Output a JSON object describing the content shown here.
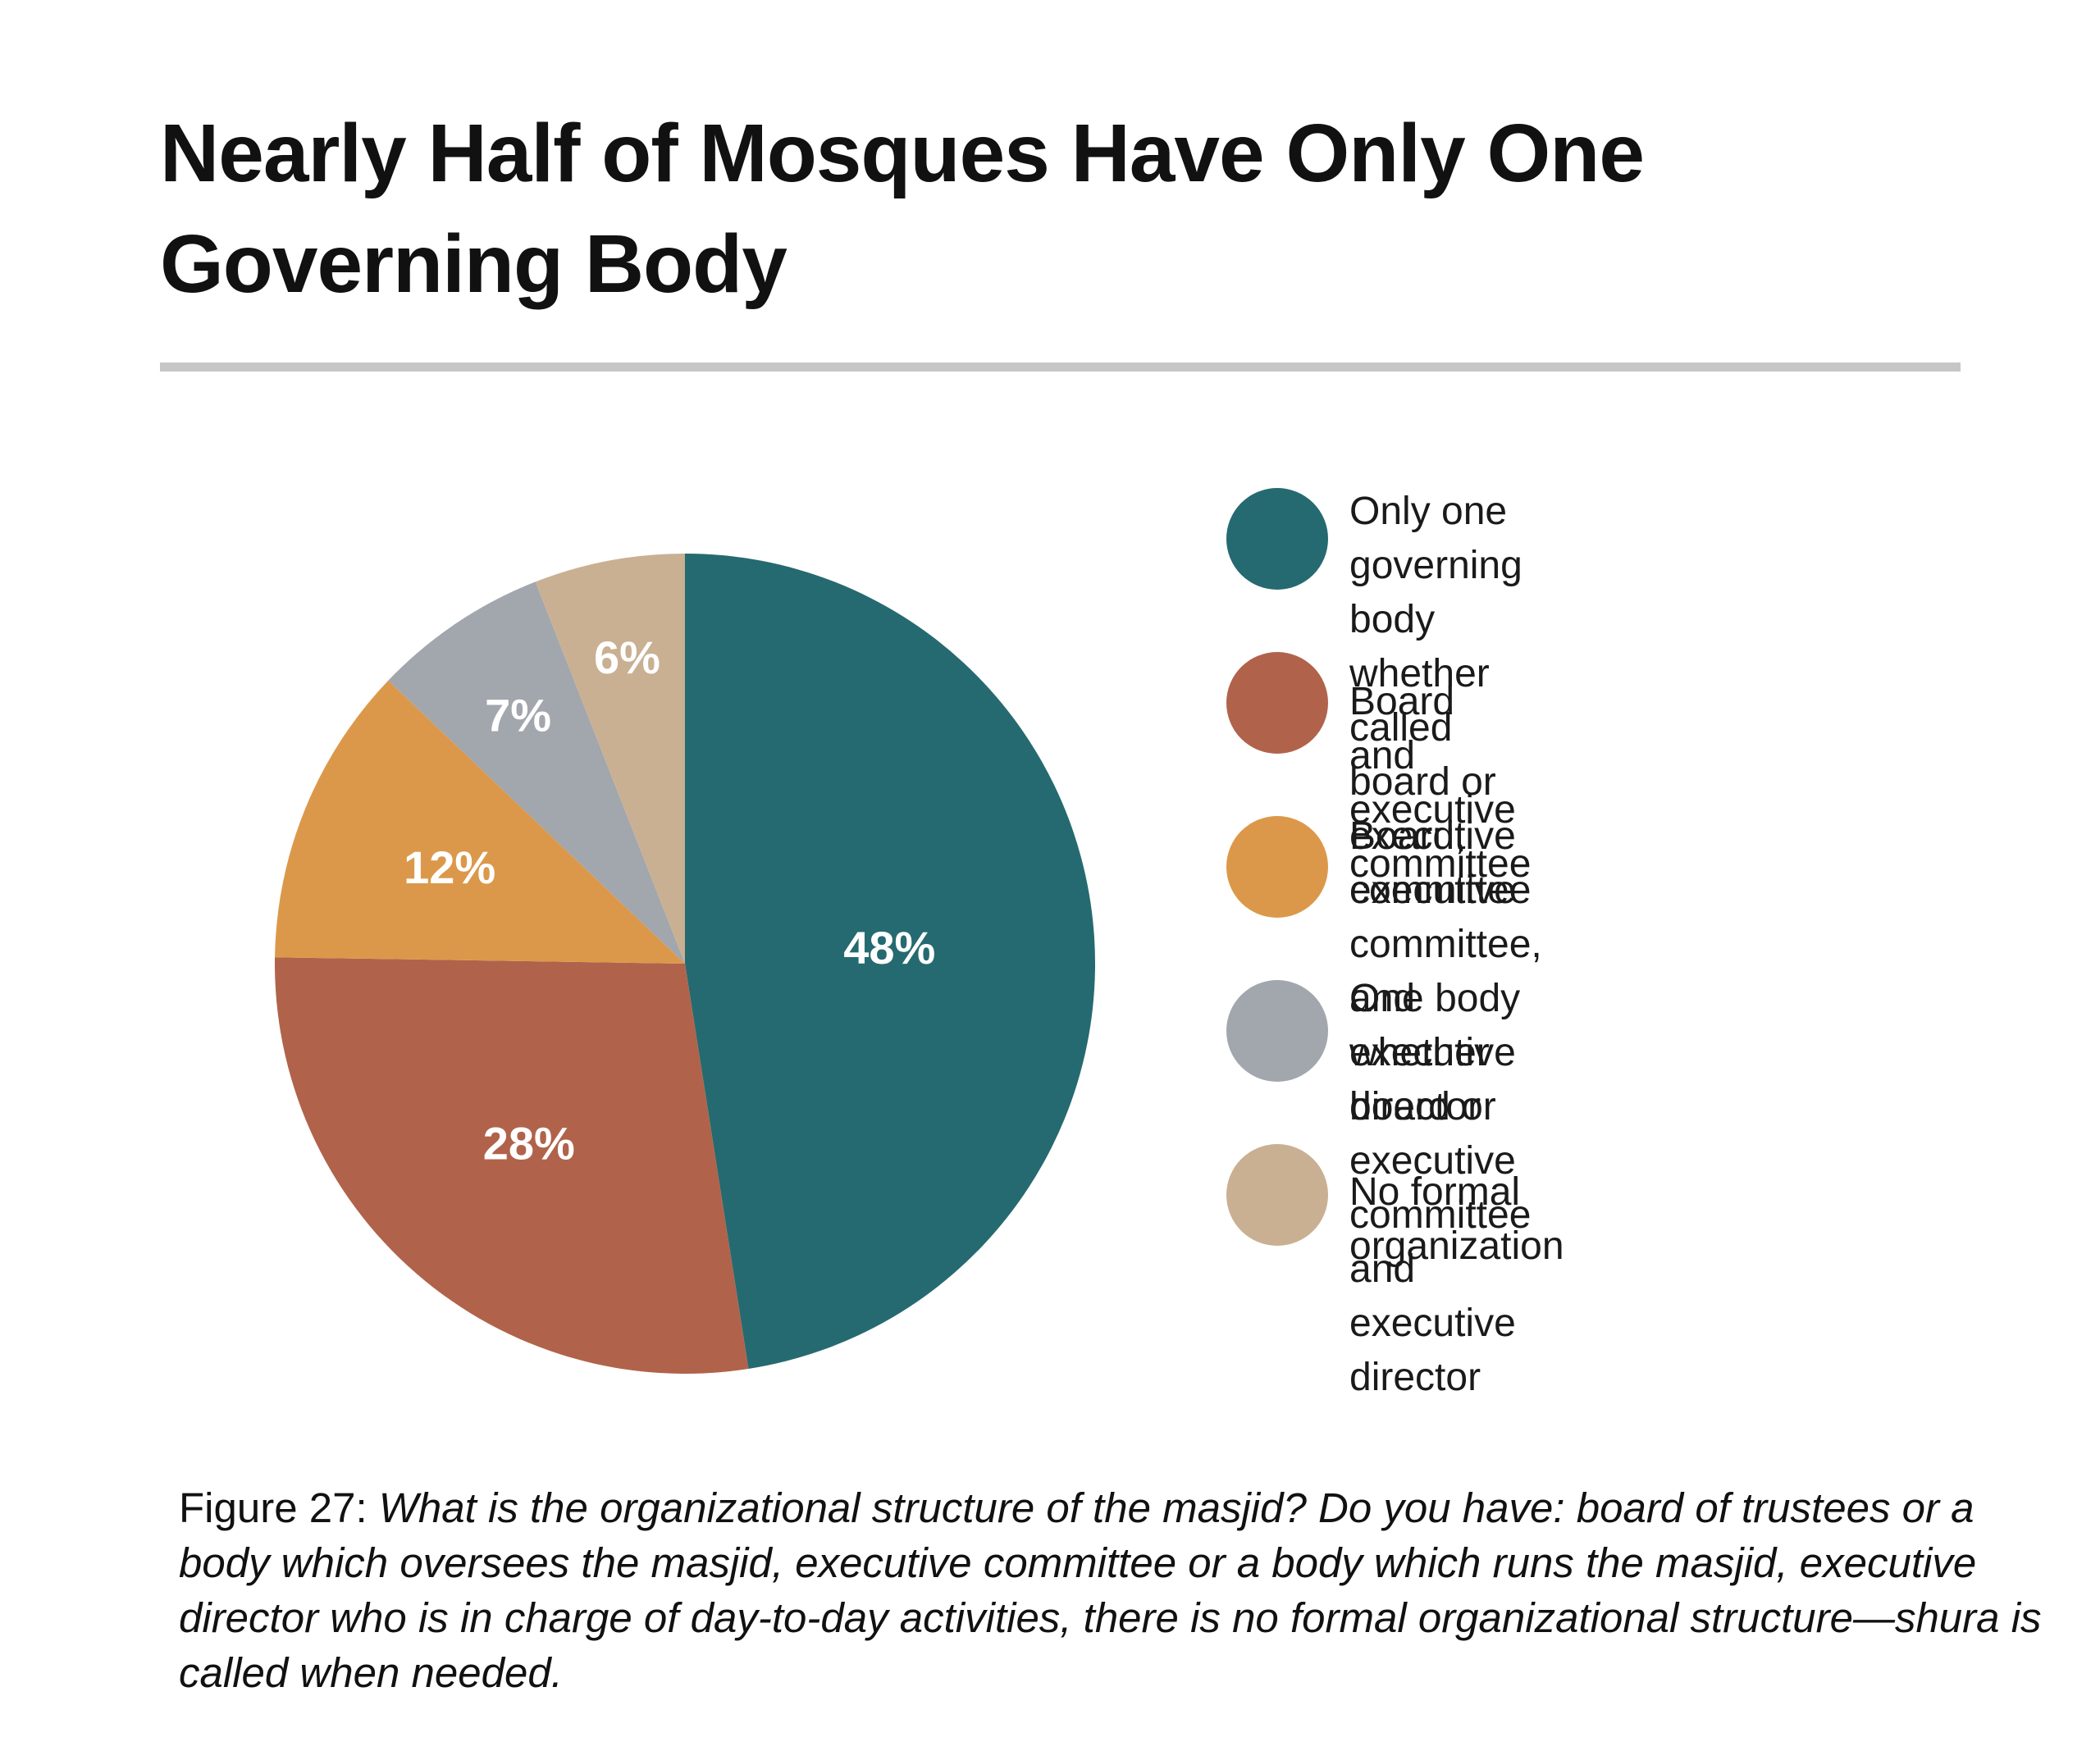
{
  "header": {
    "title": "Nearly Half of Mosques Have Only One Governing Body"
  },
  "chart_data": {
    "type": "pie",
    "title": "Nearly Half of Mosques Have Only One Governing Body",
    "categories": [
      "Only one governing body whether called board or executive committee",
      "Board and executive committee",
      "Board, executive committee, and executive director",
      "One body whether board or executive committee and executive director",
      "No formal organization"
    ],
    "values": [
      48,
      28,
      12,
      7,
      6
    ],
    "value_labels": [
      "48%",
      "28%",
      "12%",
      "7%",
      "6%"
    ],
    "colors": [
      "#256a70",
      "#b0634a",
      "#dc984a",
      "#a2a6ad",
      "#c9b092"
    ],
    "start": "12 o'clock, clockwise",
    "legend_position": "right"
  },
  "legend": {
    "items": [
      {
        "label": "Only one governing body whether\ncalled board or executive committee",
        "color": "#256a70"
      },
      {
        "label": "Board and executive committee",
        "color": "#b0634a"
      },
      {
        "label": "Board, executive committee,\nand executive director",
        "color": "#dc984a"
      },
      {
        "label": "One body whether board or\nexecutive committee and\nexecutive director",
        "color": "#a2a6ad"
      },
      {
        "label": "No formal organization",
        "color": "#c9b092"
      }
    ]
  },
  "caption": {
    "label": "Figure 27:",
    "text": "What is the organizational structure of the masjid? Do you have: board of trustees or a body which oversees the masjid, executive committee or a body which runs the masjid, executive director who is in charge of day-to-day activities, there is no formal organizational structure—shura is called when needed."
  }
}
